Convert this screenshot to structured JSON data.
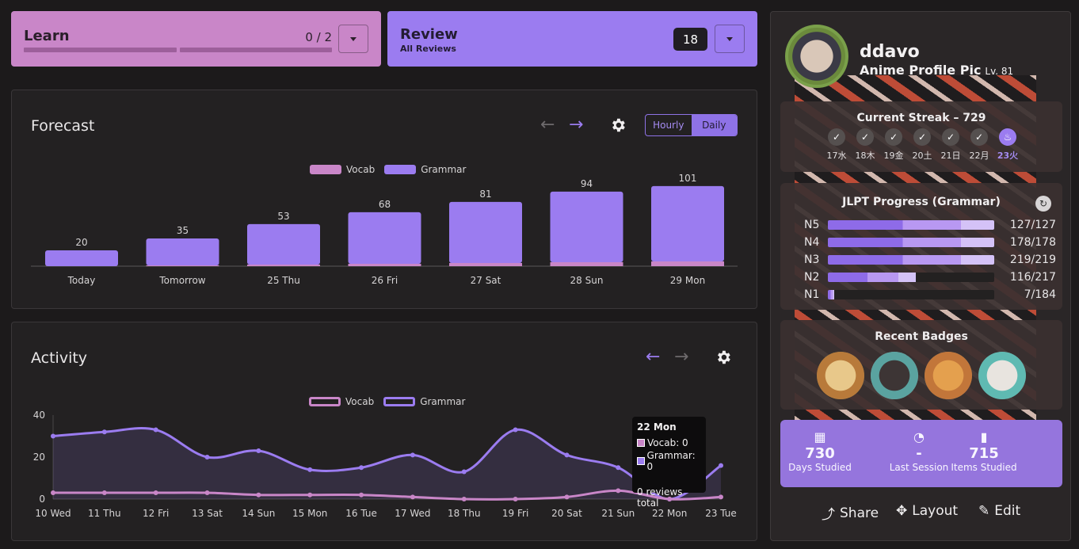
{
  "learn": {
    "title": "Learn",
    "count": "0 / 2"
  },
  "review": {
    "title": "Review",
    "subtitle": "All Reviews",
    "count": "18"
  },
  "forecast": {
    "title": "Forecast",
    "toggle": [
      "Hourly",
      "Daily"
    ],
    "legend": [
      "Vocab",
      "Grammar"
    ],
    "colors": {
      "vocab": "#c986c8",
      "grammar": "#9b7cf0"
    }
  },
  "activity": {
    "title": "Activity",
    "legend": [
      "Vocab",
      "Grammar"
    ]
  },
  "tooltip": {
    "title": "22 Mon",
    "vocab": "Vocab: 0",
    "grammar": "Grammar: 0",
    "total": "0 reviews total"
  },
  "chart_data": [
    {
      "type": "bar",
      "title": "Forecast",
      "categories": [
        "Today",
        "Tomorrow",
        "25 Thu",
        "26 Fri",
        "27 Sat",
        "28 Sun",
        "29 Mon"
      ],
      "totals": [
        20,
        35,
        53,
        68,
        81,
        94,
        101
      ],
      "series": [
        {
          "name": "Vocab",
          "values": [
            0,
            1,
            2,
            3,
            4,
            5,
            6
          ]
        },
        {
          "name": "Grammar",
          "values": [
            20,
            34,
            51,
            65,
            77,
            89,
            95
          ]
        }
      ],
      "ylim": [
        0,
        110
      ]
    },
    {
      "type": "area",
      "title": "Activity",
      "categories": [
        "10 Wed",
        "11 Thu",
        "12 Fri",
        "13 Sat",
        "14 Sun",
        "15 Mon",
        "16 Tue",
        "17 Wed",
        "18 Thu",
        "19 Fri",
        "20 Sat",
        "21 Sun",
        "22 Mon",
        "23 Tue"
      ],
      "series": [
        {
          "name": "Vocab",
          "values": [
            3,
            3,
            3,
            3,
            2,
            2,
            2,
            1,
            0,
            0,
            1,
            4,
            0,
            1
          ]
        },
        {
          "name": "Grammar",
          "values": [
            30,
            32,
            33,
            20,
            23,
            14,
            15,
            21,
            13,
            33,
            21,
            15,
            0,
            16
          ]
        }
      ],
      "yticks": [
        0,
        20,
        40
      ],
      "ylim": [
        0,
        40
      ]
    }
  ],
  "profile": {
    "username": "ddavo",
    "title": "Anime Profile Pic",
    "level": "Lv. 81",
    "streak": {
      "title": "Current Streak – 729",
      "days": [
        "17水",
        "18木",
        "19金",
        "20土",
        "21日",
        "22月",
        "23火"
      ]
    },
    "jlpt": {
      "title": "JLPT Progress (Grammar)",
      "rows": [
        {
          "level": "N5",
          "value": "127/127",
          "fill": 1.0
        },
        {
          "level": "N4",
          "value": "178/178",
          "fill": 1.0
        },
        {
          "level": "N3",
          "value": "219/219",
          "fill": 1.0
        },
        {
          "level": "N2",
          "value": "116/217",
          "fill": 0.53
        },
        {
          "level": "N1",
          "value": "7/184",
          "fill": 0.04
        }
      ]
    },
    "badges_title": "Recent Badges",
    "stats": [
      {
        "num": "730",
        "label": "Days Studied",
        "icon": "calendar-icon"
      },
      {
        "num": "-",
        "label": "Last Session",
        "icon": "clock-icon"
      },
      {
        "num": "715",
        "label": "Items Studied",
        "icon": "bar-chart-icon"
      }
    ],
    "actions": [
      "Share",
      "Layout",
      "Edit"
    ]
  }
}
